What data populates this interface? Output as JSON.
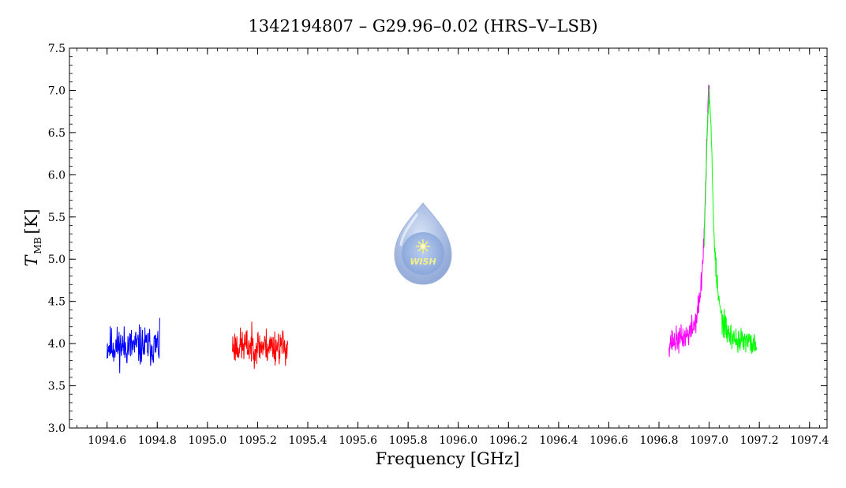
{
  "chart_data": {
    "type": "line",
    "title": "1342194807 – G29.96–0.02 (HRS–V–LSB)",
    "xlabel": "Frequency [GHz]",
    "ylabel_main": "T",
    "ylabel_sub": "MB",
    "ylabel_unit": "[K]",
    "xlim": [
      1094.45,
      1097.47
    ],
    "ylim": [
      3.0,
      7.5
    ],
    "x_ticks": [
      1094.6,
      1094.8,
      1095.0,
      1095.2,
      1095.4,
      1095.6,
      1095.8,
      1096.0,
      1096.2,
      1096.4,
      1096.6,
      1096.8,
      1097.0,
      1097.2,
      1097.4
    ],
    "x_tick_labels": [
      "1094.6",
      "1094.8",
      "1095.0",
      "1095.2",
      "1095.4",
      "1095.6",
      "1095.8",
      "1096.0",
      "1096.2",
      "1096.4",
      "1096.6",
      "1096.8",
      "1097.0",
      "1097.2",
      "1097.4"
    ],
    "y_ticks": [
      3.0,
      3.5,
      4.0,
      4.5,
      5.0,
      5.5,
      6.0,
      6.5,
      7.0,
      7.5
    ],
    "y_tick_labels": [
      "3.0",
      "3.5",
      "4.0",
      "4.5",
      "5.0",
      "5.5",
      "6.0",
      "6.5",
      "7.0",
      "7.5"
    ],
    "grid": false,
    "series": [
      {
        "color": "#0000ff",
        "x_range": [
          1094.6,
          1094.81
        ],
        "baseline": 3.97,
        "noise": 0.18,
        "peak": null,
        "seed": 11
      },
      {
        "color": "#ff0000",
        "x_range": [
          1095.1,
          1095.32
        ],
        "baseline": 3.97,
        "noise": 0.16,
        "peak": null,
        "seed": 23
      },
      {
        "color": "#ff00ff",
        "x_range": [
          1096.84,
          1097.0
        ],
        "baseline": 3.98,
        "noise": 0.12,
        "peak": {
          "center": 1097.0,
          "amplitude": 3.0,
          "width": 0.018
        },
        "seed": 37
      },
      {
        "color": "#00ff00",
        "x_range": [
          1096.98,
          1097.19
        ],
        "baseline": 3.97,
        "noise": 0.12,
        "peak": {
          "center": 1097.0,
          "amplitude": 3.0,
          "width": 0.018
        },
        "seed": 53
      }
    ]
  },
  "logo": {
    "text": "WISH"
  }
}
